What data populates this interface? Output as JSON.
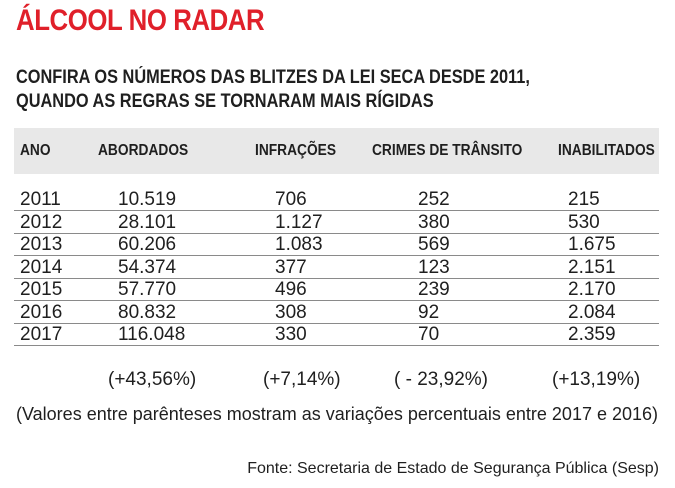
{
  "header": {
    "title": "ÁLCOOL NO RADAR",
    "subtitle_lines": [
      "CONFIRA OS NÚMEROS DAS BLITZES DA LEI SECA DESDE 2011,",
      "QUANDO AS REGRAS SE TORNARAM MAIS RÍGIDAS"
    ]
  },
  "chart_data": {
    "type": "table",
    "columns": [
      "ANO",
      "ABORDADOS",
      "INFRAÇÕES",
      "CRIMES DE TRÂNSITO",
      "INABILITADOS"
    ],
    "rows": [
      [
        "2011",
        "10.519",
        "706",
        "252",
        "215"
      ],
      [
        "2012",
        "28.101",
        "1.127",
        "380",
        "530"
      ],
      [
        "2013",
        "60.206",
        "1.083",
        "569",
        "1.675"
      ],
      [
        "2014",
        "54.374",
        "377",
        "123",
        "2.151"
      ],
      [
        "2015",
        "57.770",
        "496",
        "239",
        "2.170"
      ],
      [
        "2016",
        "80.832",
        "308",
        "92",
        "2.084"
      ],
      [
        "2017",
        "116.048",
        "330",
        "70",
        "2.359"
      ]
    ],
    "variations": [
      "",
      "(+43,56%)",
      "(+7,14%)",
      "( - 23,92%)",
      "(+13,19%)"
    ]
  },
  "footer": {
    "note": "(Valores entre parênteses mostram as variações percentuais entre 2017 e 2016)",
    "source": "Fonte: Secretaria de Estado de Segurança Pública (Sesp)"
  },
  "colors": {
    "title": "#e0202a",
    "header_band": "#e8e8e8"
  }
}
